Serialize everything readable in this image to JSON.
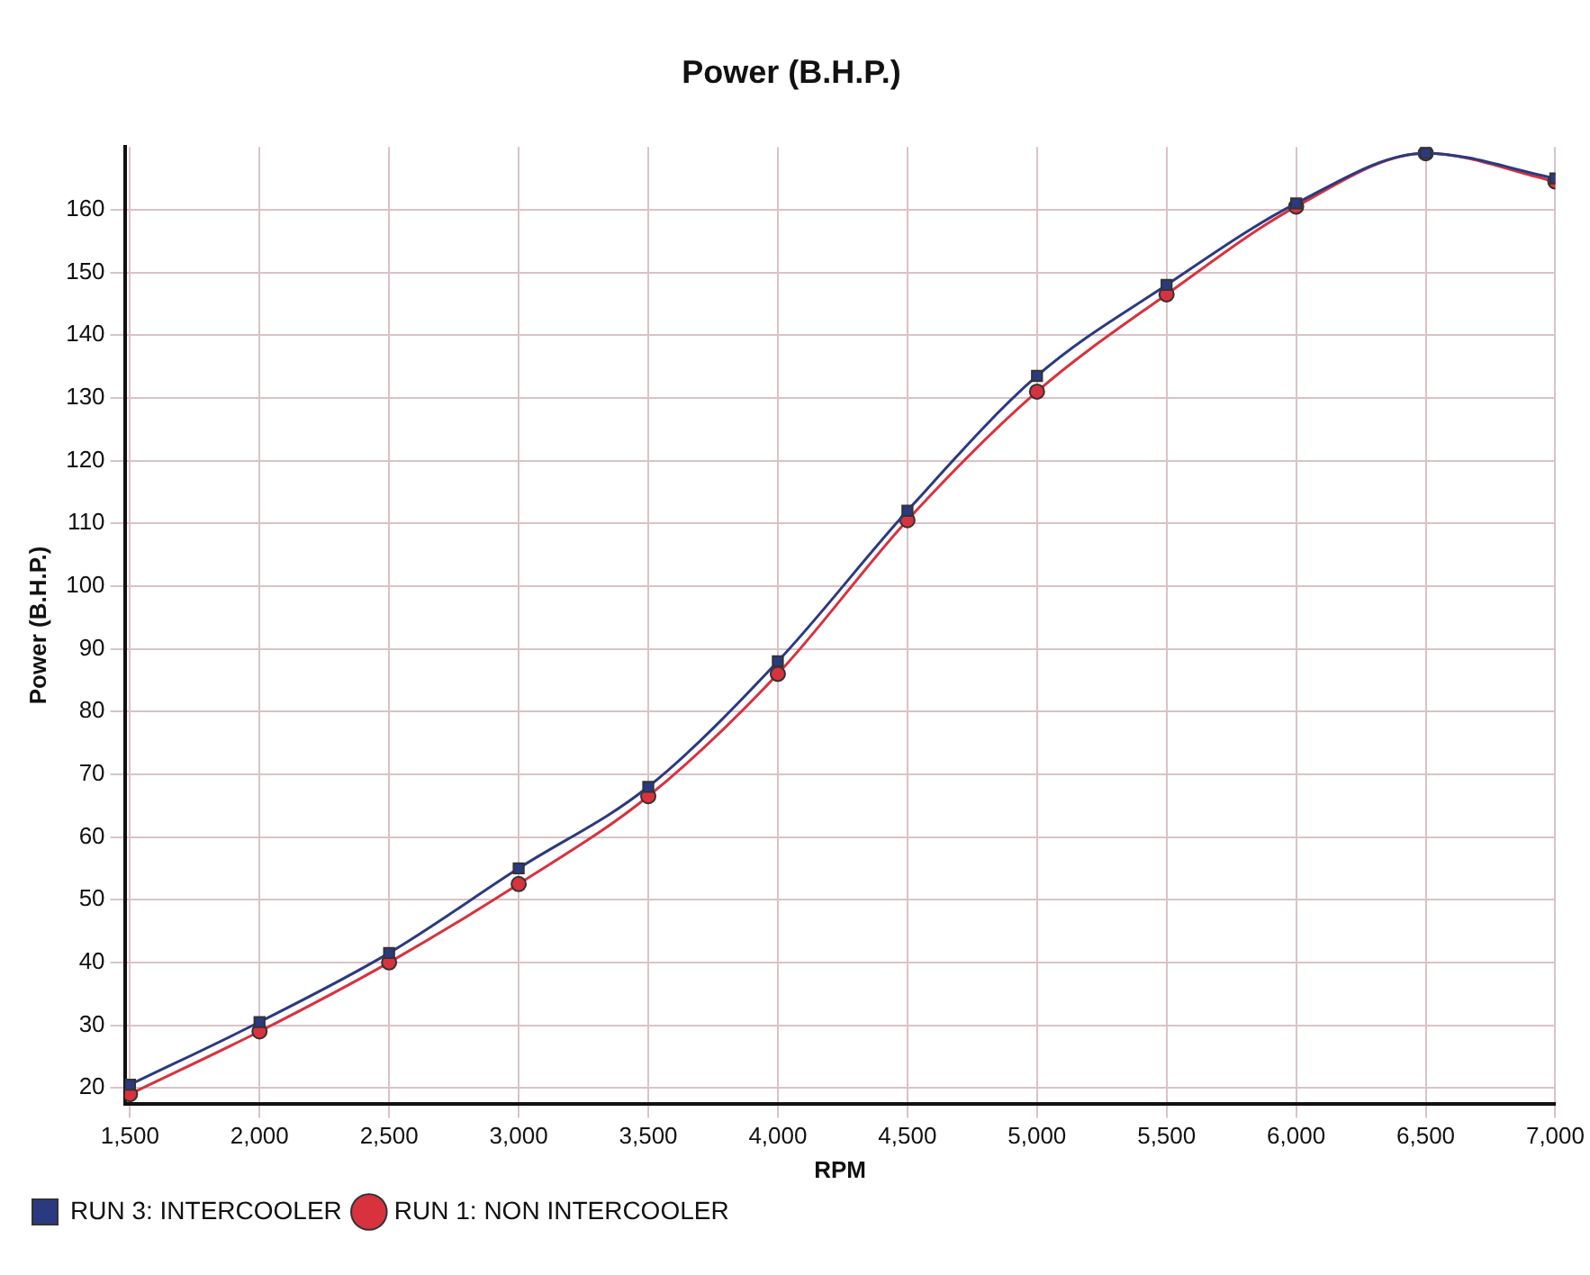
{
  "chart_data": {
    "type": "line",
    "title": "Power (B.H.P.)",
    "xlabel": "RPM",
    "ylabel": "Power (B.H.P.)",
    "x": [
      1500,
      2000,
      2500,
      3000,
      3500,
      4000,
      4500,
      5000,
      5500,
      6000,
      6500,
      7000
    ],
    "series": [
      {
        "name": "RUN 1: NON INTERCOOLER",
        "color": "#d8323f",
        "marker": "circle",
        "values": [
          19,
          29,
          40,
          52.5,
          66.5,
          86,
          110.5,
          131,
          146.5,
          160.5,
          169,
          164.5
        ]
      },
      {
        "name": "RUN 3: INTERCOOLER",
        "color": "#2b3a80",
        "marker": "square",
        "values": [
          20.5,
          30.5,
          41.5,
          55,
          68,
          88,
          112,
          133.5,
          148,
          161,
          169,
          165
        ]
      }
    ],
    "xlim": [
      1480,
      7000
    ],
    "xticks": [
      {
        "value": 1500,
        "label": "1,500"
      },
      {
        "value": 2000,
        "label": "2,000"
      },
      {
        "value": 2500,
        "label": "2,500"
      },
      {
        "value": 3000,
        "label": "3,000"
      },
      {
        "value": 3500,
        "label": "3,500"
      },
      {
        "value": 4000,
        "label": "4,000"
      },
      {
        "value": 4500,
        "label": "4,500"
      },
      {
        "value": 5000,
        "label": "5,000"
      },
      {
        "value": 5500,
        "label": "5,500"
      },
      {
        "value": 6000,
        "label": "6,000"
      },
      {
        "value": 6500,
        "label": "6,500"
      },
      {
        "value": 7000,
        "label": "7,000"
      }
    ],
    "ylim": [
      17.5,
      170
    ],
    "yticks": [
      20,
      30,
      40,
      50,
      60,
      70,
      80,
      90,
      100,
      110,
      120,
      130,
      140,
      150,
      160
    ],
    "grid": true,
    "legend": "bottom left",
    "line_style": "solid"
  }
}
